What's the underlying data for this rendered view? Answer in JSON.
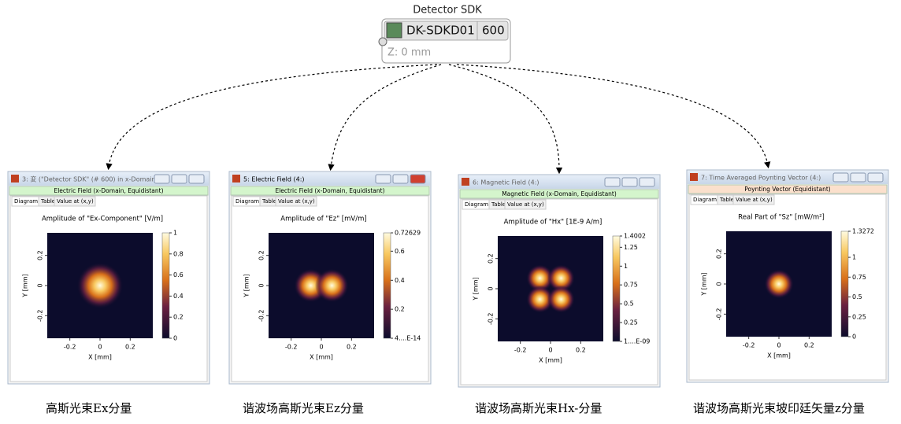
{
  "detector": {
    "title": "Detector SDK",
    "name": "DK-SDKD01",
    "id": "600",
    "z": "Z: 0 mm"
  },
  "windows": [
    {
      "title": "3: 変 (\"Detector SDK\" (# 600) in x-Domain...",
      "header": "Electric Field (x-Domain, Equidistant)",
      "tabs": [
        "Diagram",
        "Table",
        "Value at (x,y)"
      ],
      "plot_title": "Amplitude of \"Ex-Component\"  [V/m]",
      "x_label": "X [mm]",
      "y_label": "Y [mm]",
      "x_ticks": [
        "-0.2",
        "0",
        "0.2"
      ],
      "y_ticks": [
        "0.2",
        "0",
        "-0.2"
      ],
      "colorbar_ticks": [
        "1",
        "0.8",
        "0.6",
        "0.4",
        "0.2",
        "0"
      ],
      "caption": "高斯光束Ex分量"
    },
    {
      "title": "5: Electric Field (4:)",
      "header": "Electric Field (x-Domain, Equidistant)",
      "tabs": [
        "Diagram",
        "Table",
        "Value at (x,y)"
      ],
      "plot_title": "Amplitude of \"Ez\"  [mV/m]",
      "x_label": "X [mm]",
      "y_label": "Y [mm]",
      "x_ticks": [
        "-0.2",
        "0",
        "0.2"
      ],
      "y_ticks": [
        "0.2",
        "0",
        "-0.2"
      ],
      "colorbar_ticks": [
        "0.72629",
        "0.6",
        "0.4",
        "0.2",
        "4....E-14"
      ],
      "caption": "谐波场高斯光束Ez分量"
    },
    {
      "title": "6: Magnetic Field (4:)",
      "header": "Magnetic Field (x-Domain, Equidistant)",
      "tabs": [
        "Diagram",
        "Table",
        "Value at (x,y)"
      ],
      "plot_title": "Amplitude of \"Hx\"  [1E-9 A/m]",
      "x_label": "X [mm]",
      "y_label": "Y [mm]",
      "x_ticks": [
        "-0.2",
        "0",
        "0.2"
      ],
      "y_ticks": [
        "0.2",
        "0",
        "-0.2"
      ],
      "colorbar_ticks": [
        "1.4002",
        "1.25",
        "1",
        "0.75",
        "0.5",
        "0.25",
        "1....E-09"
      ],
      "caption": "谐波场高斯光束Hx-分量"
    },
    {
      "title": "7: Time Averaged Poynting Vector (4:)",
      "header": "Poynting Vector (Equidistant)",
      "tabs": [
        "Diagram",
        "Table",
        "Value at (x,y)"
      ],
      "plot_title": "Real Part of \"Sz\"  [mW/m²]",
      "x_label": "X [mm]",
      "y_label": "Y [mm]",
      "x_ticks": [
        "-0.2",
        "0",
        "0.2"
      ],
      "y_ticks": [
        "0.2",
        "0",
        "-0.2"
      ],
      "colorbar_ticks": [
        "1.3272",
        "1",
        "0.75",
        "0.5",
        "0.25",
        "0"
      ],
      "caption": "谐波场高斯光束坡印廷矢量z分量"
    }
  ]
}
